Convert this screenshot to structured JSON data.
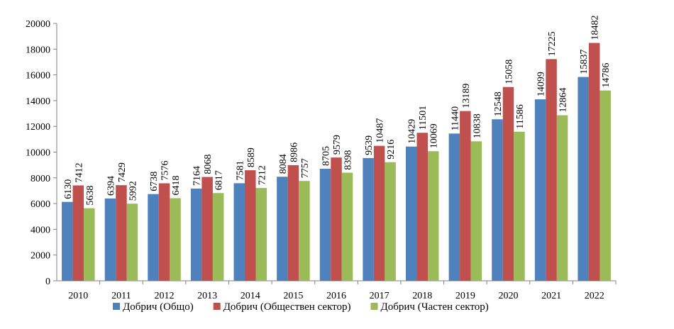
{
  "chart_data": {
    "type": "bar",
    "title": "",
    "xlabel": "",
    "ylabel": "",
    "ylim": [
      0,
      20000
    ],
    "ytick_step": 2000,
    "grid": false,
    "legend_position": "bottom",
    "categories": [
      "2010",
      "2011",
      "2012",
      "2013",
      "2014",
      "2015",
      "2016",
      "2017",
      "2018",
      "2019",
      "2020",
      "2021",
      "2022"
    ],
    "series": [
      {
        "name": "Добрич (Общо)",
        "color": "#4F81BD",
        "values": [
          6130,
          6394,
          6738,
          7164,
          7581,
          8084,
          8705,
          9539,
          10429,
          11440,
          12548,
          14099,
          15837
        ]
      },
      {
        "name": "Добрич (Обществен сектор)",
        "color": "#C0504D",
        "values": [
          7412,
          7429,
          7576,
          8068,
          8589,
          8986,
          9579,
          10487,
          11501,
          13189,
          15058,
          17225,
          18482
        ]
      },
      {
        "name": "Добрич (Частен сектор)",
        "color": "#9BBB59",
        "values": [
          5638,
          5992,
          6418,
          6817,
          7212,
          7757,
          8398,
          9216,
          10069,
          10838,
          11586,
          12864,
          14786
        ]
      }
    ]
  }
}
